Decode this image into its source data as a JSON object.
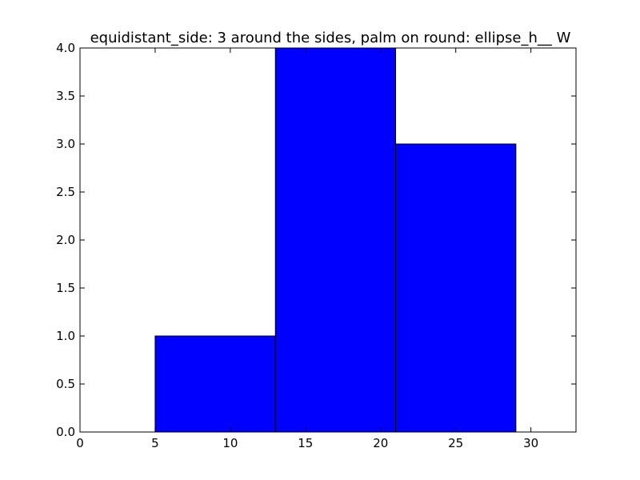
{
  "chart_data": {
    "type": "bar",
    "title": "equidistant_side: 3 around the sides, palm on round: ellipse_h__ W",
    "xlabel": "",
    "ylabel": "",
    "bins": [
      {
        "x0": 0,
        "x1": 5,
        "value": 0
      },
      {
        "x0": 5,
        "x1": 13,
        "value": 1
      },
      {
        "x0": 13,
        "x1": 21,
        "value": 4
      },
      {
        "x0": 21,
        "x1": 29,
        "value": 3
      }
    ],
    "xlim": [
      0,
      33
    ],
    "ylim": [
      0,
      4
    ],
    "xticks": [
      0,
      5,
      10,
      15,
      20,
      25,
      30
    ],
    "yticks": [
      "0.0",
      "0.5",
      "1.0",
      "1.5",
      "2.0",
      "2.5",
      "3.0",
      "3.5",
      "4.0"
    ],
    "grid": false,
    "legend": "none",
    "colors": {
      "bar_fill": "#0000ff",
      "bar_edge": "#000000",
      "axes": "#000000",
      "background": "#ffffff"
    }
  }
}
